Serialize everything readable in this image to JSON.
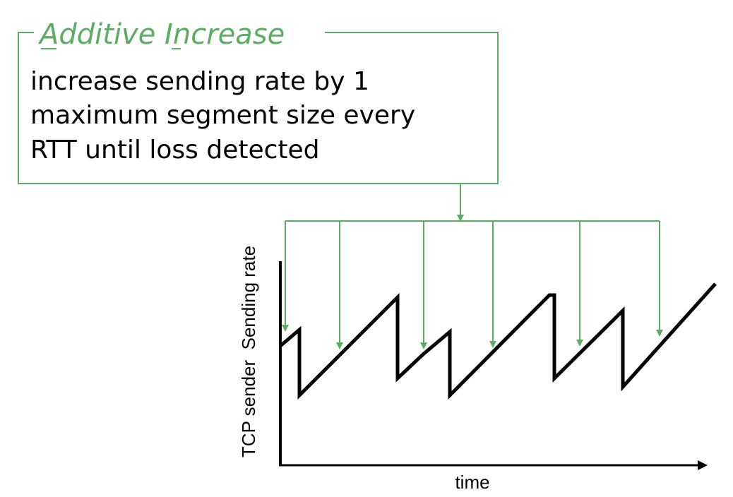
{
  "callout": {
    "title": "Additive Increase",
    "title_underlined_letters": [
      "A",
      "I"
    ],
    "body_lines": [
      "increase sending rate by 1",
      "maximum segment size every",
      "RTT until loss detected"
    ]
  },
  "axes": {
    "x_label": "time",
    "y_label": "TCP sender  Sending rate"
  },
  "colors": {
    "accent_green": "#5aae61",
    "line_black": "#000000",
    "background": "#ffffff"
  }
}
